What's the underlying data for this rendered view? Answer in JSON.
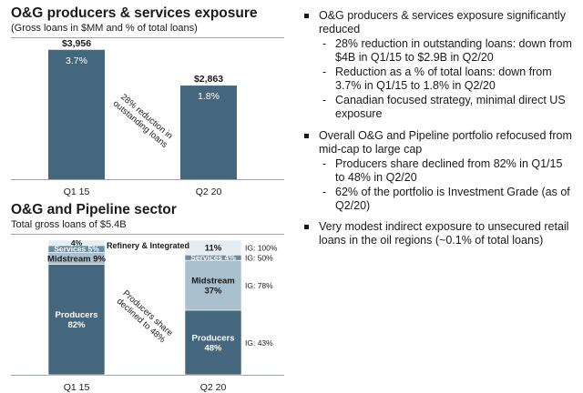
{
  "top": {
    "title": "O&G producers & services exposure",
    "subtitle": "(Gross loans in $MM and % of total loans)"
  },
  "bottom": {
    "title": "O&G and Pipeline sector",
    "subtitle": "Total gross loans of $5.4B"
  },
  "chart_data": [
    {
      "type": "bar",
      "title": "O&G producers & services exposure",
      "subtitle": "(Gross loans in $MM and % of total loans)",
      "categories": [
        "Q1 15",
        "Q2 20"
      ],
      "values": [
        3956,
        2863
      ],
      "value_labels": [
        "$3,956",
        "$2,863"
      ],
      "pct_labels": [
        "3.7%",
        "1.8%"
      ],
      "ylim": [
        0,
        4200
      ],
      "annotation": [
        "28% reduction in",
        "outstanding loans"
      ],
      "colors": {
        "bar": "#45677e",
        "axis": "#9aa4ab"
      }
    },
    {
      "type": "bar",
      "stacked": true,
      "title": "O&G and Pipeline sector",
      "subtitle": "Total gross loans of $5.4B",
      "categories": [
        "Q1 15",
        "Q2 20"
      ],
      "ylim": [
        0,
        100
      ],
      "series": [
        {
          "name": "Producers",
          "values": [
            82,
            48
          ],
          "labels": [
            "Producers\n82%",
            "Producers\n48%"
          ],
          "color": "#45677e",
          "text": "#ffffff"
        },
        {
          "name": "Midstream",
          "values": [
            9,
            37
          ],
          "labels": [
            "Midstream 9%",
            "Midstream\n37%"
          ],
          "color": "#a9bfcd",
          "text": "#1a1a1a"
        },
        {
          "name": "Services",
          "values": [
            5,
            4
          ],
          "labels": [
            "Services 5%",
            "Services 4%"
          ],
          "color": "#6a8ca3",
          "text": "#ffffff"
        },
        {
          "name": "Refinery & Integrated",
          "values": [
            4,
            11
          ],
          "labels": [
            "4%",
            "11%"
          ],
          "color": "#e6edf2",
          "text": "#1a1a1a"
        }
      ],
      "legend_label": "Refinery & Integrated",
      "ig_labels": [
        "IG: 43%",
        "IG: 78%",
        "IG: 50%",
        "IG: 100%"
      ],
      "annotation": [
        "Producers share",
        "declined to 48%"
      ]
    }
  ],
  "bullets": [
    {
      "text": "O&G producers & services exposure significantly reduced",
      "subs": [
        "28% reduction in outstanding loans: down from $4B in Q1/15 to $2.9B in Q2/20",
        "Reduction as a % of total loans: down from 3.7% in Q1/15 to 1.8% in Q2/20",
        "Canadian focused strategy, minimal direct US exposure"
      ]
    },
    {
      "text": "Overall O&G and Pipeline portfolio refocused from mid-cap to large cap",
      "subs": [
        "Producers share declined from 82% in Q1/15 to 48% in Q2/20",
        "62% of the portfolio is Investment Grade (as of Q2/20)"
      ]
    },
    {
      "text": "Very modest indirect exposure to unsecured retail loans in the oil regions (~0.1% of total loans)",
      "subs": []
    }
  ]
}
